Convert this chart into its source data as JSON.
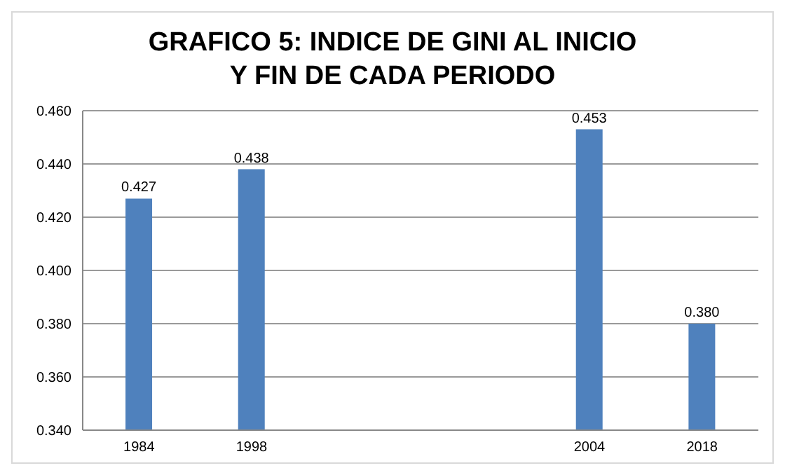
{
  "chart_data": {
    "type": "bar",
    "title": "GRAFICO 5: INDICE DE GINI AL INICIO Y FIN DE CADA PERIODO",
    "categories": [
      "1984",
      "1998",
      null,
      null,
      "2004",
      "2018"
    ],
    "values": [
      0.427,
      0.438,
      null,
      null,
      0.453,
      0.38
    ],
    "value_labels": [
      "0.427",
      "0.438",
      null,
      null,
      "0.453",
      "0.380"
    ],
    "color": "#4f81bd",
    "ylim": [
      0.34,
      0.46
    ],
    "yticks": [
      {
        "value": 0.34,
        "label": "0.340"
      },
      {
        "value": 0.36,
        "label": "0.360"
      },
      {
        "value": 0.38,
        "label": "0.380"
      },
      {
        "value": 0.4,
        "label": "0.400"
      },
      {
        "value": 0.42,
        "label": "0.420"
      },
      {
        "value": 0.44,
        "label": "0.440"
      },
      {
        "value": 0.46,
        "label": "0.460"
      }
    ],
    "grid": "y"
  }
}
